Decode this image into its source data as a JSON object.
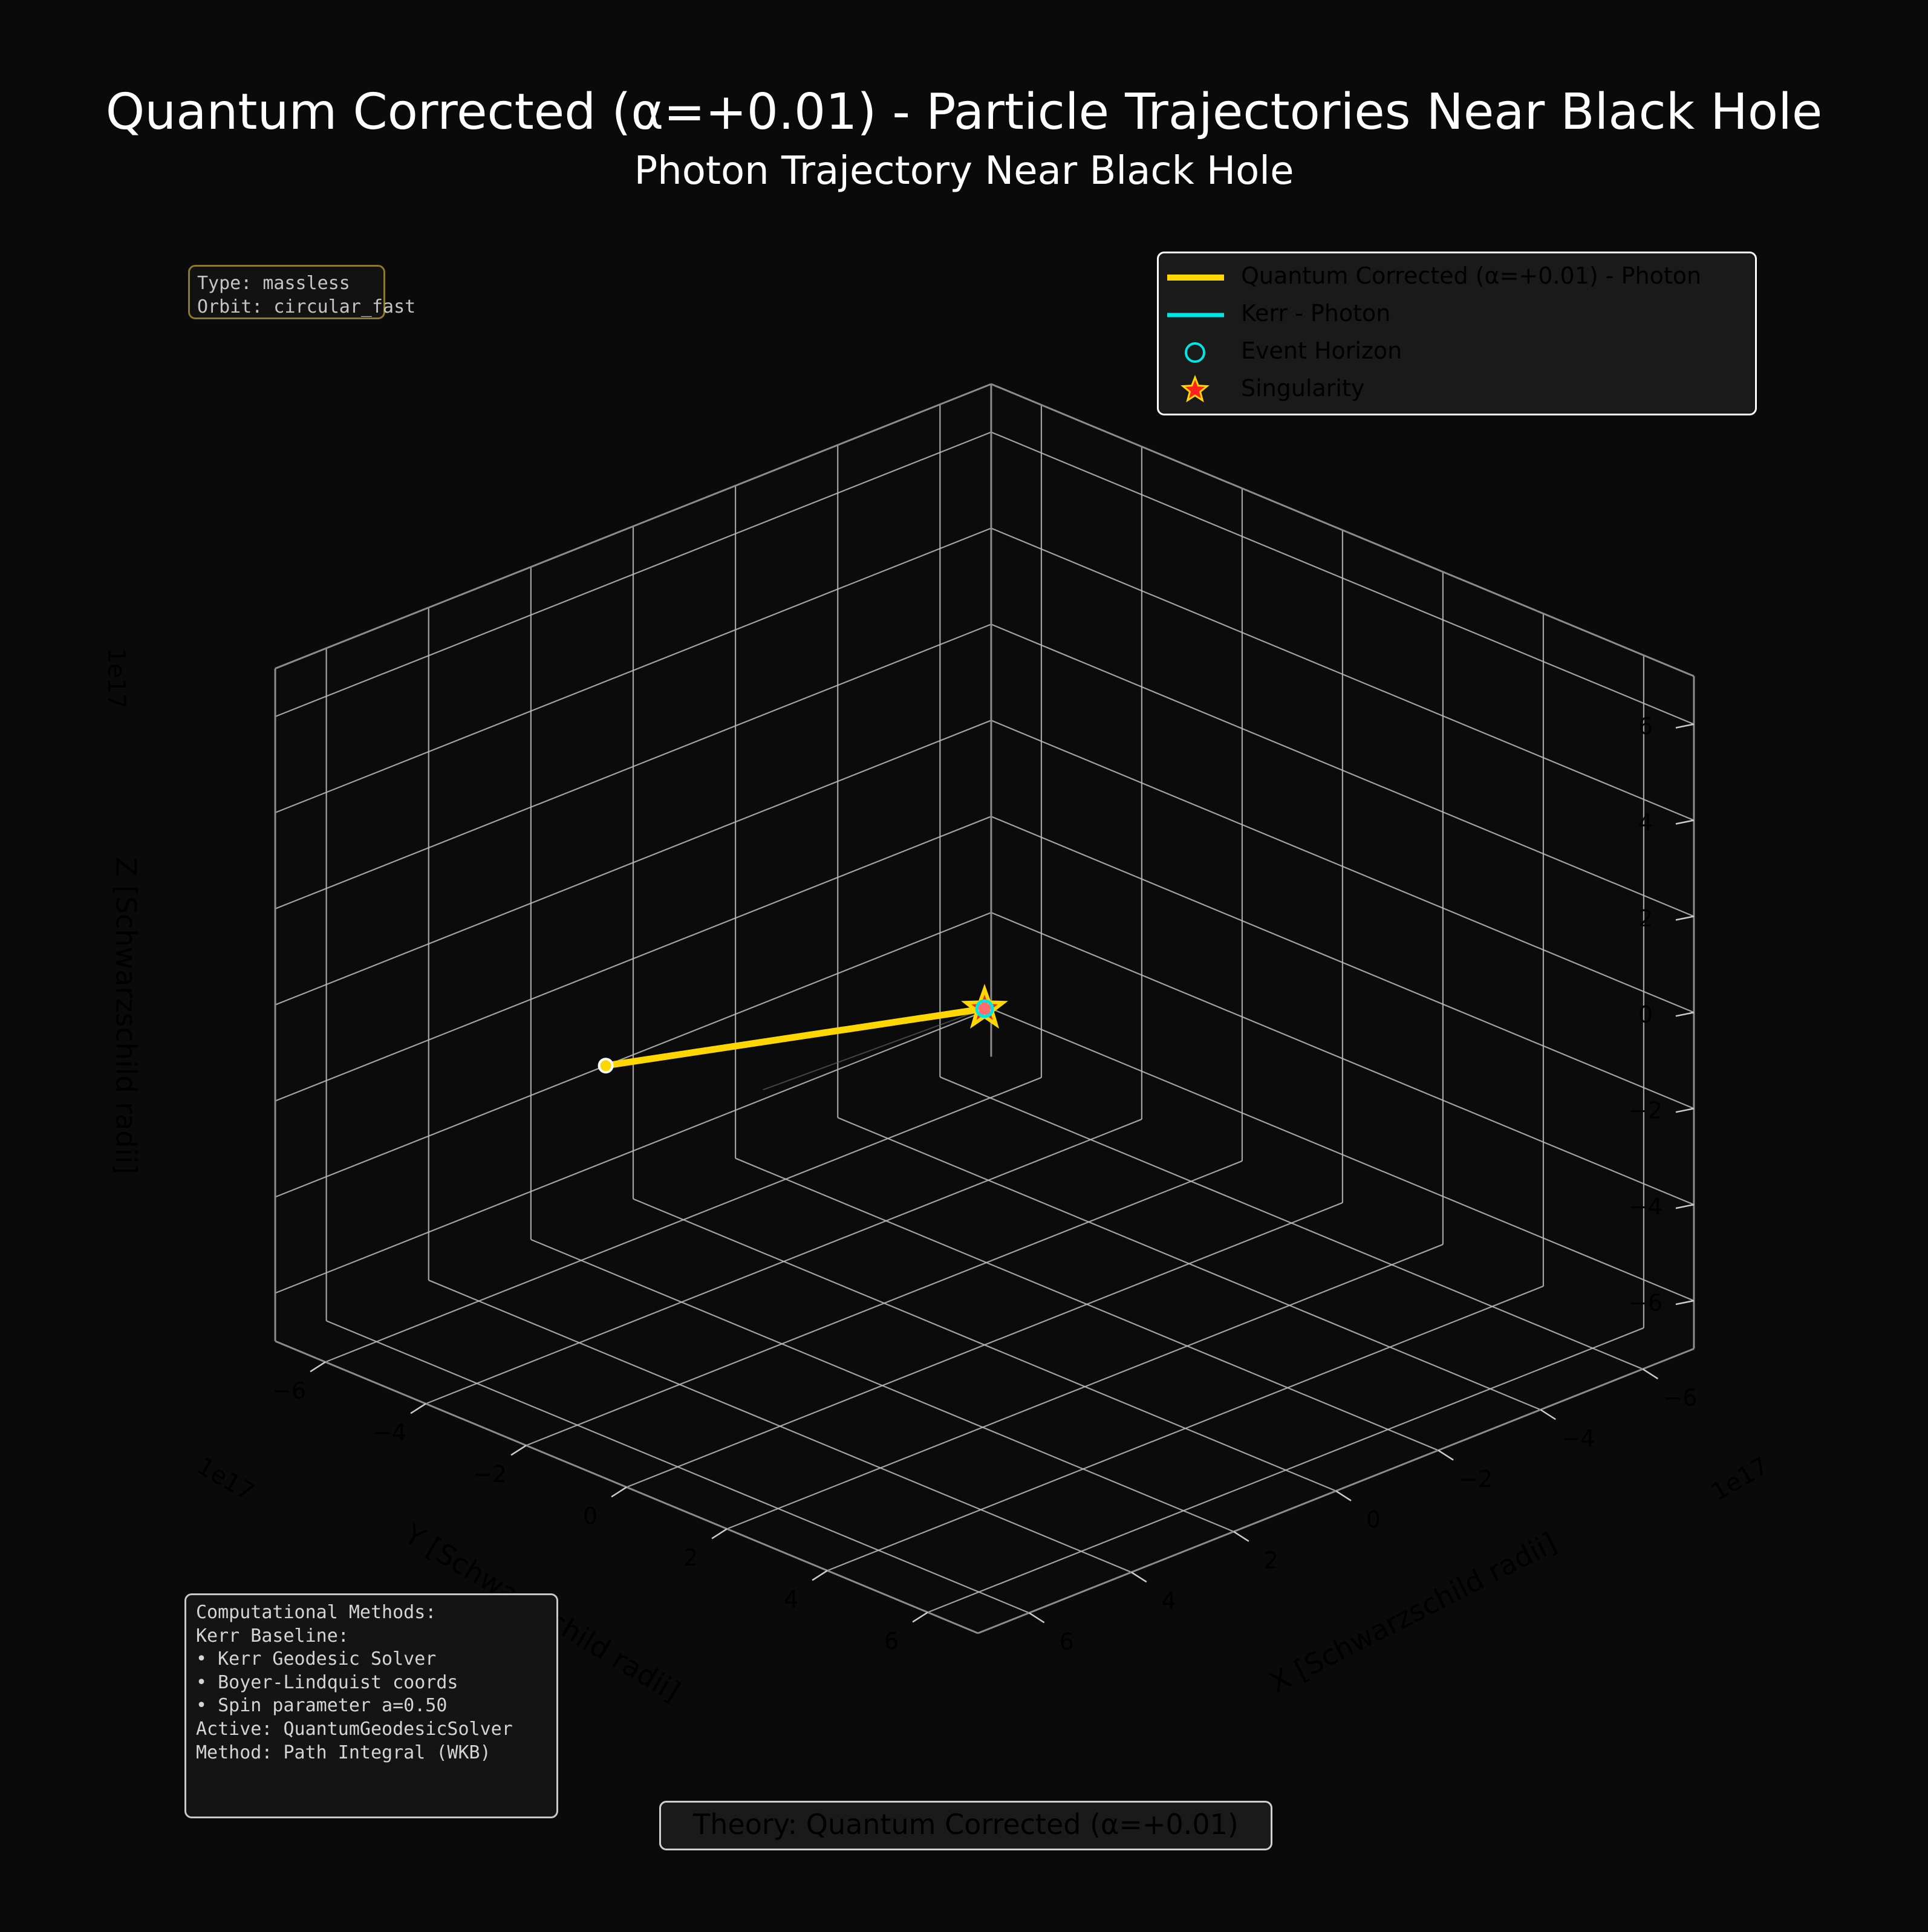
{
  "title": "Quantum Corrected (α=+0.01) - Particle Trajectories Near Black Hole",
  "subtitle": "Photon Trajectory Near Black Hole",
  "info_box": {
    "lines": [
      "Type: massless",
      "Orbit: circular_fast"
    ]
  },
  "methods_box": {
    "lines": [
      "Computational Methods:",
      "",
      "Kerr Baseline:",
      "• Kerr Geodesic Solver",
      "• Boyer-Lindquist coords",
      "• Spin parameter a=0.50",
      "",
      "Active: QuantumGeodesicSolver",
      "Method: Path Integral (WKB)"
    ]
  },
  "theory_label": "Theory: Quantum Corrected (α=+0.01)",
  "colors": {
    "quantum": "#ffd700",
    "kerr": "#00e5e5",
    "horizon": "#00e5e5",
    "singularity_fill": "#ff2020",
    "singularity_edge": "#ffd700",
    "background": "#0a0a0a"
  },
  "chart_data": {
    "type": "line",
    "projection": "3d",
    "title": "Photon Trajectory Near Black Hole",
    "xlabel": "X [Schwarzschild radii]",
    "ylabel": "Y [Schwarzschild radii]",
    "zlabel": "Z [Schwarzschild radii]",
    "axis_multiplier": "1e17",
    "xlim": [
      -7,
      7
    ],
    "ylim": [
      -7,
      7
    ],
    "zlim": [
      -7,
      7
    ],
    "x_ticks": [
      "−6",
      "−4",
      "−2",
      "0",
      "2",
      "4",
      "6"
    ],
    "y_ticks": [
      "−6",
      "−4",
      "−2",
      "0",
      "2",
      "4",
      "6"
    ],
    "z_ticks": [
      "−6",
      "−4",
      "−2",
      "0",
      "2",
      "4",
      "6"
    ],
    "grid": true,
    "legend_position": "upper-right",
    "legend": [
      {
        "name": "Quantum Corrected (α=+0.01) - Photon",
        "marker": "line",
        "color": "#ffd700"
      },
      {
        "name": "Kerr - Photon",
        "marker": "line",
        "color": "#00e5e5"
      },
      {
        "name": "Event Horizon",
        "marker": "circle",
        "color": "#00e5e5"
      },
      {
        "name": "Singularity",
        "marker": "star",
        "color": "#ff2020"
      }
    ],
    "series": [
      {
        "name": "Quantum Corrected (α=+0.01) - Photon",
        "color": "#ffd700",
        "points": [
          {
            "x": 0,
            "y": 0,
            "z": 0
          },
          {
            "x": 2.5,
            "y": -5,
            "z": -2.3
          }
        ]
      },
      {
        "name": "Kerr - Photon",
        "color": "#00e5e5",
        "points": []
      }
    ],
    "markers": [
      {
        "name": "Event Horizon",
        "x": 0,
        "y": 0,
        "z": 0
      },
      {
        "name": "Singularity",
        "x": 0,
        "y": 0,
        "z": 0
      }
    ]
  }
}
